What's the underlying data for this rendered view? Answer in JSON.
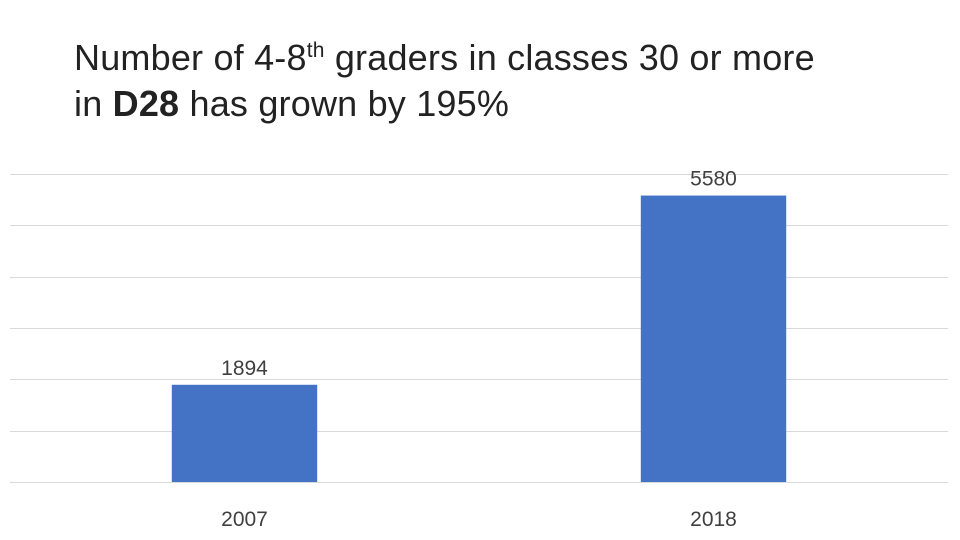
{
  "title": {
    "line1_before": "Number of 4-8",
    "line1_sup": "th",
    "line1_after": " graders in classes 30 or more",
    "line2_before": "in ",
    "line2_bold": "D28",
    "line2_after": " has grown by 195%"
  },
  "chart_data": {
    "type": "bar",
    "categories": [
      "2007",
      "2018"
    ],
    "series": [
      {
        "values": [
          1894,
          5580
        ],
        "color": "#4472C4"
      }
    ],
    "data_labels": [
      "1894",
      "5580"
    ],
    "ylim": [
      0,
      6000
    ],
    "y_gridline_step": 1000,
    "grid": true,
    "show_y_axis_labels": false,
    "legend": "none",
    "colors": {
      "bar": "#4472C4",
      "grid": "#D9D9D9",
      "text": "#404040"
    }
  }
}
